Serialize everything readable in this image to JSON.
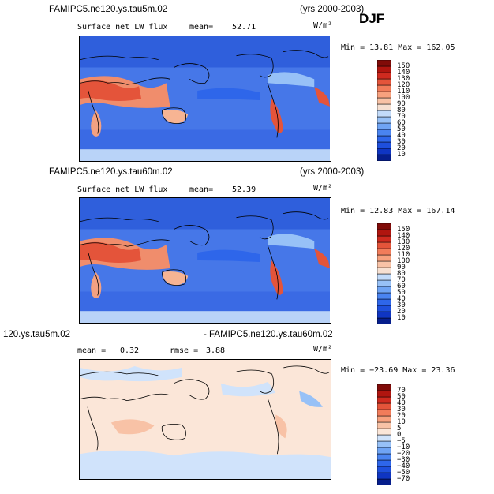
{
  "header": {
    "season": "DJF"
  },
  "panels": [
    {
      "case_title": "FAMIPC5.ne120.ys.tau5m.02",
      "years": "(yrs 2000-2003)",
      "variable": "Surface net LW flux",
      "stat_label": "mean=",
      "stat_value": "52.71",
      "units": "W/m²",
      "minmax": "Min =   13.81 Max = 162.05"
    },
    {
      "case_title": "FAMIPC5.ne120.ys.tau60m.02",
      "years": "(yrs 2000-2003)",
      "variable": "Surface net LW flux",
      "stat_label": "mean=",
      "stat_value": "52.39",
      "units": "W/m²",
      "minmax": "Min =   12.83 Max = 167.14"
    },
    {
      "case_title_left": "120.ys.tau5m.02",
      "case_title_right": "- FAMIPC5.ne120.ys.tau60m.02",
      "stat_label": "mean =",
      "stat_value": "0.32",
      "rmse_label": "rmse =",
      "rmse_value": "3.88",
      "units": "W/m²",
      "minmax": "Min = −23.69 Max =  23.36"
    }
  ],
  "chart_data": [
    {
      "type": "heatmap",
      "title": "FAMIPC5.ne120.ys.tau5m.02",
      "subtitle": "Surface net LW flux",
      "mean": 52.71,
      "units": "W/m²",
      "min": 13.81,
      "max": 162.05,
      "colorbar_levels": [
        10,
        20,
        30,
        40,
        50,
        60,
        70,
        80,
        90,
        100,
        110,
        120,
        130,
        140,
        150
      ],
      "colorbar_colors": [
        "#061e8c",
        "#0f35c2",
        "#1e4fdc",
        "#2e66ea",
        "#4a84f0",
        "#6fa4f4",
        "#97c1f7",
        "#c2dbfa",
        "#f6e0d2",
        "#f8c2a6",
        "#f7a17e",
        "#f17c5a",
        "#e4543a",
        "#cf2a1f",
        "#b0150f",
        "#800b08"
      ]
    },
    {
      "type": "heatmap",
      "title": "FAMIPC5.ne120.ys.tau60m.02",
      "subtitle": "Surface net LW flux",
      "mean": 52.39,
      "units": "W/m²",
      "min": 12.83,
      "max": 167.14,
      "colorbar_levels": [
        10,
        20,
        30,
        40,
        50,
        60,
        70,
        80,
        90,
        100,
        110,
        120,
        130,
        140,
        150
      ],
      "colorbar_colors": [
        "#061e8c",
        "#0f35c2",
        "#1e4fdc",
        "#2e66ea",
        "#4a84f0",
        "#6fa4f4",
        "#97c1f7",
        "#c2dbfa",
        "#f6e0d2",
        "#f8c2a6",
        "#f7a17e",
        "#f17c5a",
        "#e4543a",
        "#cf2a1f",
        "#b0150f",
        "#800b08"
      ]
    },
    {
      "type": "heatmap",
      "title": "120.ys.tau5m.02 - FAMIPC5.ne120.ys.tau60m.02",
      "mean": 0.32,
      "rmse": 3.88,
      "units": "W/m²",
      "min": -23.69,
      "max": 23.36,
      "colorbar_levels": [
        -70,
        -50,
        -40,
        -30,
        -20,
        -10,
        -5,
        0,
        5,
        10,
        20,
        30,
        40,
        50,
        70
      ],
      "colorbar_colors": [
        "#061e8c",
        "#0f35c2",
        "#1e4fdc",
        "#2e66ea",
        "#4a84f0",
        "#6fa4f4",
        "#97c1f7",
        "#d0e3fb",
        "#fbe6d8",
        "#f8c2a6",
        "#f7a17e",
        "#f17c5a",
        "#e4543a",
        "#cf2a1f",
        "#b0150f",
        "#800b08"
      ]
    }
  ]
}
